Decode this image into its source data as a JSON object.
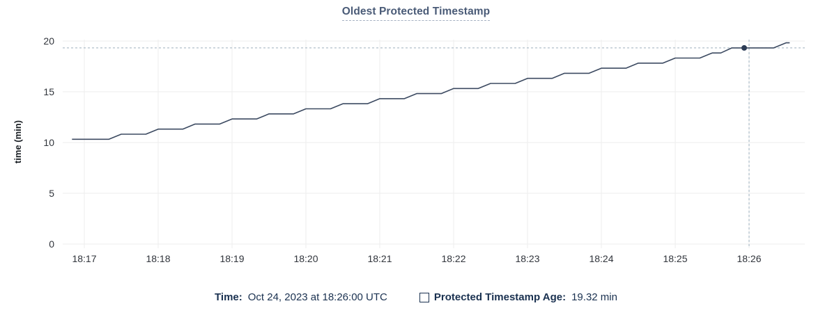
{
  "header": {
    "title": "Oldest Protected Timestamp"
  },
  "colors": {
    "title": "#4a5b77",
    "title_underline": "#a6b1c2",
    "grid": "#f0f0f0",
    "axis": "#ececec",
    "tick_text": "#30343b",
    "axis_label_text": "#1c2126",
    "line": "#3c4a61",
    "dot": "#2c3c55",
    "crosshair": "#9db0be",
    "legend_text": "#1a3150"
  },
  "chart_data": {
    "type": "line",
    "title": "Oldest Protected Timestamp",
    "xlabel": "",
    "ylabel": "time (min)",
    "ylim": [
      0,
      20
    ],
    "grid": true,
    "legend_position": "bottom",
    "y_ticks": [
      0,
      5,
      10,
      15,
      20
    ],
    "x_tick_labels": [
      "18:17",
      "18:18",
      "18:19",
      "18:20",
      "18:21",
      "18:22",
      "18:23",
      "18:24",
      "18:25",
      "18:26"
    ],
    "x_tick_interval_seconds": 60,
    "series": [
      {
        "name": "Protected Timestamp Age",
        "unit": "min",
        "points": [
          [
            -10,
            10.32
          ],
          [
            20,
            10.32
          ],
          [
            30,
            10.82
          ],
          [
            50,
            10.82
          ],
          [
            60,
            11.32
          ],
          [
            80,
            11.32
          ],
          [
            90,
            11.82
          ],
          [
            110,
            11.82
          ],
          [
            120,
            12.32
          ],
          [
            140,
            12.32
          ],
          [
            150,
            12.82
          ],
          [
            170,
            12.82
          ],
          [
            180,
            13.32
          ],
          [
            200,
            13.32
          ],
          [
            210,
            13.82
          ],
          [
            230,
            13.82
          ],
          [
            240,
            14.32
          ],
          [
            260,
            14.32
          ],
          [
            270,
            14.82
          ],
          [
            290,
            14.82
          ],
          [
            300,
            15.32
          ],
          [
            320,
            15.32
          ],
          [
            330,
            15.82
          ],
          [
            350,
            15.82
          ],
          [
            360,
            16.32
          ],
          [
            380,
            16.32
          ],
          [
            390,
            16.82
          ],
          [
            410,
            16.82
          ],
          [
            420,
            17.32
          ],
          [
            440,
            17.32
          ],
          [
            450,
            17.82
          ],
          [
            470,
            17.82
          ],
          [
            480,
            18.32
          ],
          [
            500,
            18.32
          ],
          [
            510,
            18.82
          ],
          [
            517,
            18.82
          ],
          [
            526,
            19.32
          ],
          [
            560,
            19.32
          ],
          [
            570,
            19.82
          ],
          [
            573,
            19.82
          ]
        ]
      }
    ],
    "hover": {
      "t_seconds": 540,
      "value": 19.32,
      "time_label": "Oct 24, 2023 at 18:26:00 UTC"
    }
  },
  "legend": {
    "time_label": "Time:",
    "time_value": "Oct 24, 2023 at 18:26:00 UTC",
    "series_label": "Protected Timestamp Age:",
    "series_value": "19.32 min"
  }
}
